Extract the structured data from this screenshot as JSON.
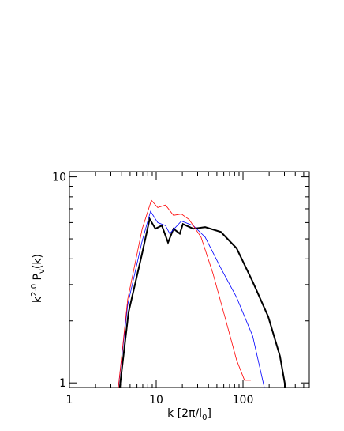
{
  "chart_data": {
    "type": "line",
    "xlog": true,
    "ylog": true,
    "xlabel": {
      "main": "k  [2π/l",
      "sub": "0",
      "end": "]"
    },
    "ylabel": {
      "main": "k",
      "sup": "2.0",
      "mid": " P",
      "sub": "v",
      "end": "(k)"
    },
    "xlim": [
      1,
      580
    ],
    "ylim": [
      0.95,
      10.6
    ],
    "xticks": [
      1,
      10,
      100
    ],
    "yticks": [
      1,
      10
    ],
    "vline": 8,
    "series": [
      {
        "name": "black",
        "color": "#000000",
        "width": 2,
        "x": [
          3.8,
          4.8,
          6.9,
          8.4,
          9.8,
          11.6,
          13.7,
          15.8,
          18.7,
          20.3,
          26.7,
          36.6,
          55.6,
          84.4,
          129,
          195,
          266,
          309
        ],
        "values": [
          0.95,
          2.2,
          4.27,
          6.25,
          5.6,
          5.8,
          4.8,
          5.6,
          5.3,
          5.9,
          5.6,
          5.7,
          5.4,
          4.5,
          3.1,
          2.1,
          1.35,
          0.95
        ]
      },
      {
        "name": "blue",
        "color": "#0000ff",
        "width": 0.8,
        "x": [
          3.66,
          4.7,
          6.9,
          8.6,
          10.4,
          12.8,
          14.3,
          19.5,
          26.7,
          36.6,
          55.6,
          84.4,
          129,
          176
        ],
        "values": [
          0.95,
          2.4,
          4.9,
          6.8,
          6.0,
          5.8,
          5.3,
          6.1,
          5.8,
          5.1,
          3.6,
          2.6,
          1.69,
          0.95
        ]
      },
      {
        "name": "red",
        "color": "#ff0000",
        "width": 0.8,
        "x": [
          3.66,
          4.7,
          6.9,
          8.8,
          10.4,
          12.8,
          15.8,
          19.5,
          24,
          32.8,
          45,
          61.7,
          84.4,
          104,
          123
        ],
        "values": [
          0.95,
          2.55,
          5.6,
          7.7,
          7.1,
          7.3,
          6.5,
          6.6,
          6.2,
          5.1,
          3.4,
          2.1,
          1.29,
          1.03,
          1.03
        ]
      }
    ]
  }
}
